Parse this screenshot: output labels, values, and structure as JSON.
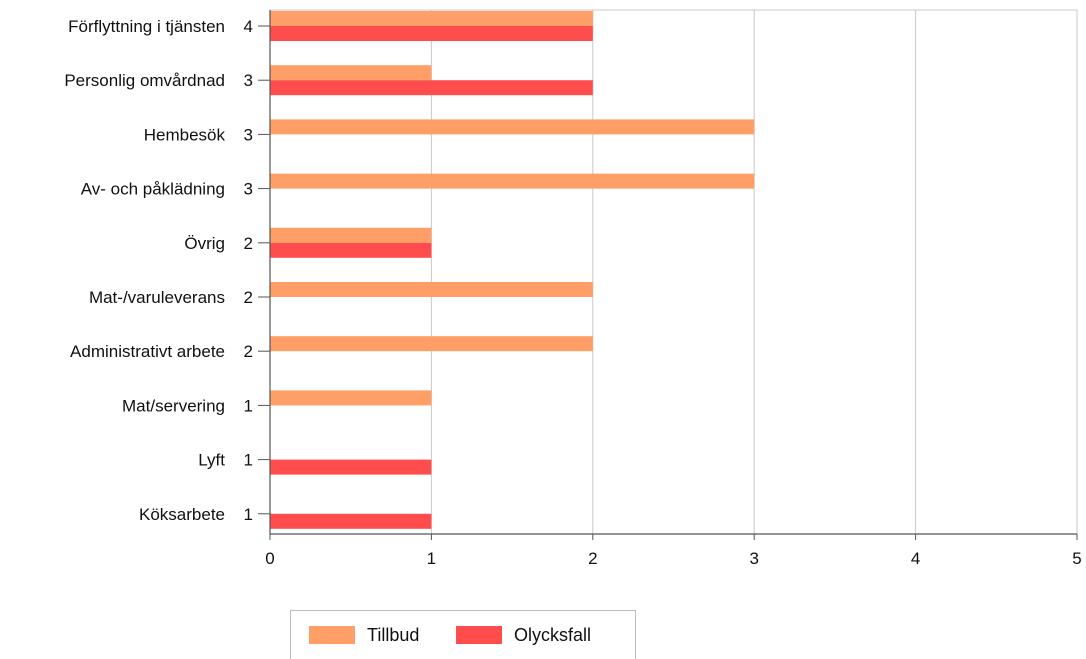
{
  "chart_data": {
    "type": "bar",
    "orientation": "horizontal",
    "categories": [
      "Förflyttning i tjänsten",
      "Personlig omvårdnad",
      "Hembesök",
      "Av- och påklädning",
      "Övrig",
      "Mat-/varuleverans",
      "Administrativt arbete",
      "Mat/servering",
      "Lyft",
      "Köksarbete"
    ],
    "totals": [
      4,
      3,
      3,
      3,
      2,
      2,
      2,
      1,
      1,
      1
    ],
    "series": [
      {
        "name": "Tillbud",
        "color": "#FF9E66",
        "values": [
          2,
          1,
          3,
          3,
          1,
          2,
          2,
          1,
          0,
          0
        ]
      },
      {
        "name": "Olycksfall",
        "color": "#FF4D4D",
        "values": [
          2,
          2,
          0,
          0,
          1,
          0,
          0,
          0,
          1,
          1
        ]
      }
    ],
    "xlim": [
      0,
      5
    ],
    "xticks": [
      0,
      1,
      2,
      3,
      4,
      5
    ],
    "grid": true,
    "legend_position": "bottom",
    "axis_color": "#555555",
    "grid_color": "#c8c8c8"
  }
}
